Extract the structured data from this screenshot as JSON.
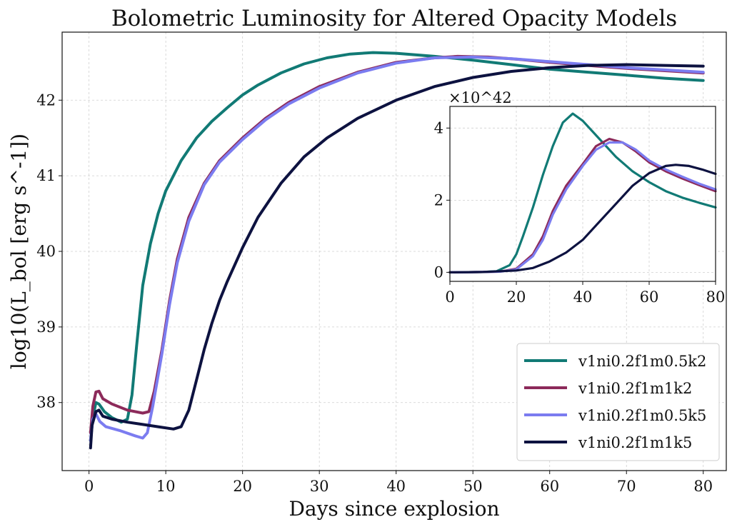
{
  "chart_data": {
    "type": "line",
    "title": "Bolometric Luminosity for Altered Opacity Models",
    "xlabel": "Days since explosion",
    "ylabel": "log10(L_bol [erg s^-1])",
    "xlim": [
      -3.5,
      83
    ],
    "ylim": [
      37.1,
      42.9
    ],
    "xticks": [
      0,
      10,
      20,
      30,
      40,
      50,
      60,
      70,
      80
    ],
    "yticks": [
      38,
      39,
      40,
      41,
      42
    ],
    "grid": true,
    "legend_position": "lower-right",
    "series": [
      {
        "name": "v1ni0.2f1m0.5k2",
        "color": "#117a75",
        "points": [
          [
            0.2,
            37.5
          ],
          [
            0.5,
            37.8
          ],
          [
            0.9,
            38.0
          ],
          [
            1.3,
            37.98
          ],
          [
            2,
            37.88
          ],
          [
            3,
            37.8
          ],
          [
            4.2,
            37.74
          ],
          [
            5,
            37.78
          ],
          [
            5.6,
            38.1
          ],
          [
            6.2,
            38.75
          ],
          [
            7,
            39.55
          ],
          [
            8,
            40.1
          ],
          [
            9,
            40.5
          ],
          [
            10,
            40.8
          ],
          [
            12,
            41.2
          ],
          [
            14,
            41.5
          ],
          [
            16,
            41.72
          ],
          [
            18,
            41.9
          ],
          [
            20,
            42.07
          ],
          [
            22,
            42.2
          ],
          [
            25,
            42.36
          ],
          [
            28,
            42.48
          ],
          [
            31,
            42.56
          ],
          [
            34,
            42.61
          ],
          [
            37,
            42.63
          ],
          [
            40,
            42.62
          ],
          [
            45,
            42.58
          ],
          [
            50,
            42.53
          ],
          [
            55,
            42.47
          ],
          [
            60,
            42.41
          ],
          [
            65,
            42.37
          ],
          [
            70,
            42.33
          ],
          [
            75,
            42.29
          ],
          [
            80,
            42.26
          ]
        ]
      },
      {
        "name": "v1ni0.2f1m1k2",
        "color": "#8c2a5a",
        "points": [
          [
            0.2,
            37.6
          ],
          [
            0.5,
            37.95
          ],
          [
            0.9,
            38.14
          ],
          [
            1.3,
            38.15
          ],
          [
            1.8,
            38.05
          ],
          [
            3,
            37.98
          ],
          [
            5,
            37.9
          ],
          [
            7,
            37.86
          ],
          [
            7.8,
            37.88
          ],
          [
            8.5,
            38.15
          ],
          [
            9.5,
            38.7
          ],
          [
            10.5,
            39.35
          ],
          [
            11.5,
            39.9
          ],
          [
            13,
            40.45
          ],
          [
            15,
            40.9
          ],
          [
            17,
            41.2
          ],
          [
            20,
            41.5
          ],
          [
            23,
            41.76
          ],
          [
            26,
            41.97
          ],
          [
            30,
            42.18
          ],
          [
            35,
            42.37
          ],
          [
            40,
            42.5
          ],
          [
            45,
            42.56
          ],
          [
            48,
            42.58
          ],
          [
            52,
            42.57
          ],
          [
            56,
            42.54
          ],
          [
            60,
            42.5
          ],
          [
            65,
            42.46
          ],
          [
            70,
            42.42
          ],
          [
            75,
            42.39
          ],
          [
            80,
            42.36
          ]
        ]
      },
      {
        "name": "v1ni0.2f1m0.5k5",
        "color": "#7b7cf0",
        "points": [
          [
            0.2,
            37.5
          ],
          [
            0.5,
            37.78
          ],
          [
            0.9,
            37.85
          ],
          [
            1.4,
            37.75
          ],
          [
            2.2,
            37.68
          ],
          [
            4,
            37.63
          ],
          [
            6,
            37.56
          ],
          [
            7,
            37.53
          ],
          [
            7.6,
            37.6
          ],
          [
            8.3,
            37.95
          ],
          [
            9.5,
            38.65
          ],
          [
            10.5,
            39.3
          ],
          [
            11.5,
            39.85
          ],
          [
            13,
            40.4
          ],
          [
            15,
            40.88
          ],
          [
            17,
            41.18
          ],
          [
            20,
            41.48
          ],
          [
            23,
            41.74
          ],
          [
            26,
            41.95
          ],
          [
            30,
            42.16
          ],
          [
            35,
            42.36
          ],
          [
            40,
            42.49
          ],
          [
            45,
            42.56
          ],
          [
            50,
            42.57
          ],
          [
            55,
            42.55
          ],
          [
            60,
            42.51
          ],
          [
            65,
            42.47
          ],
          [
            70,
            42.43
          ],
          [
            75,
            42.4
          ],
          [
            80,
            42.37
          ]
        ]
      },
      {
        "name": "v1ni0.2f1m1k5",
        "color": "#0d1240",
        "points": [
          [
            0.2,
            37.4
          ],
          [
            0.4,
            37.7
          ],
          [
            0.9,
            37.88
          ],
          [
            1.3,
            37.9
          ],
          [
            1.8,
            37.82
          ],
          [
            3,
            37.78
          ],
          [
            5,
            37.74
          ],
          [
            7,
            37.71
          ],
          [
            9,
            37.68
          ],
          [
            11,
            37.65
          ],
          [
            12,
            37.68
          ],
          [
            13,
            37.9
          ],
          [
            14,
            38.3
          ],
          [
            15,
            38.7
          ],
          [
            16,
            39.05
          ],
          [
            17,
            39.35
          ],
          [
            18,
            39.6
          ],
          [
            20,
            40.05
          ],
          [
            22,
            40.45
          ],
          [
            25,
            40.9
          ],
          [
            28,
            41.25
          ],
          [
            31,
            41.5
          ],
          [
            35,
            41.76
          ],
          [
            40,
            42.0
          ],
          [
            45,
            42.18
          ],
          [
            50,
            42.3
          ],
          [
            55,
            42.38
          ],
          [
            60,
            42.43
          ],
          [
            65,
            42.46
          ],
          [
            70,
            42.47
          ],
          [
            75,
            42.46
          ],
          [
            80,
            42.45
          ]
        ]
      }
    ],
    "legend": [
      "v1ni0.2f1m0.5k2",
      "v1ni0.2f1m1k2",
      "v1ni0.2f1m0.5k5",
      "v1ni0.2f1m1k5"
    ],
    "inset": {
      "type": "line",
      "xlim": [
        0,
        80
      ],
      "ylim": [
        -0.25,
        4.6
      ],
      "xticks": [
        0,
        20,
        40,
        60,
        80
      ],
      "yticks": [
        0,
        2,
        4
      ],
      "scale_label": "×10^42",
      "units_scale": "1e42 erg s^-1",
      "series": [
        {
          "name": "v1ni0.2f1m0.5k2",
          "color": "#117a75",
          "points": [
            [
              0,
              0
            ],
            [
              10,
              0.01
            ],
            [
              14,
              0.03
            ],
            [
              18,
              0.2
            ],
            [
              20,
              0.5
            ],
            [
              22,
              1.0
            ],
            [
              25,
              1.8
            ],
            [
              28,
              2.7
            ],
            [
              31,
              3.5
            ],
            [
              34,
              4.15
            ],
            [
              37,
              4.4
            ],
            [
              40,
              4.2
            ],
            [
              45,
              3.7
            ],
            [
              50,
              3.2
            ],
            [
              55,
              2.8
            ],
            [
              60,
              2.5
            ],
            [
              65,
              2.25
            ],
            [
              70,
              2.07
            ],
            [
              75,
              1.93
            ],
            [
              80,
              1.8
            ]
          ]
        },
        {
          "name": "v1ni0.2f1m1k2",
          "color": "#8c2a5a",
          "points": [
            [
              0,
              0
            ],
            [
              10,
              0.01
            ],
            [
              15,
              0.02
            ],
            [
              20,
              0.1
            ],
            [
              25,
              0.5
            ],
            [
              28,
              1.0
            ],
            [
              31,
              1.7
            ],
            [
              35,
              2.4
            ],
            [
              40,
              3.0
            ],
            [
              44,
              3.5
            ],
            [
              48,
              3.7
            ],
            [
              52,
              3.6
            ],
            [
              56,
              3.35
            ],
            [
              60,
              3.05
            ],
            [
              65,
              2.8
            ],
            [
              70,
              2.6
            ],
            [
              75,
              2.42
            ],
            [
              80,
              2.25
            ]
          ]
        },
        {
          "name": "v1ni0.2f1m0.5k5",
          "color": "#7b7cf0",
          "points": [
            [
              0,
              0
            ],
            [
              10,
              0.01
            ],
            [
              15,
              0.02
            ],
            [
              20,
              0.08
            ],
            [
              25,
              0.45
            ],
            [
              28,
              0.9
            ],
            [
              31,
              1.6
            ],
            [
              35,
              2.3
            ],
            [
              40,
              2.95
            ],
            [
              44,
              3.4
            ],
            [
              48,
              3.6
            ],
            [
              52,
              3.6
            ],
            [
              56,
              3.4
            ],
            [
              60,
              3.1
            ],
            [
              65,
              2.85
            ],
            [
              70,
              2.65
            ],
            [
              75,
              2.46
            ],
            [
              80,
              2.3
            ]
          ]
        },
        {
          "name": "v1ni0.2f1m1k5",
          "color": "#0d1240",
          "points": [
            [
              0,
              0
            ],
            [
              10,
              0.01
            ],
            [
              20,
              0.05
            ],
            [
              25,
              0.12
            ],
            [
              30,
              0.3
            ],
            [
              35,
              0.55
            ],
            [
              40,
              0.9
            ],
            [
              45,
              1.4
            ],
            [
              50,
              1.9
            ],
            [
              55,
              2.4
            ],
            [
              60,
              2.75
            ],
            [
              65,
              2.95
            ],
            [
              68,
              2.98
            ],
            [
              72,
              2.95
            ],
            [
              76,
              2.85
            ],
            [
              80,
              2.73
            ]
          ]
        }
      ]
    }
  }
}
